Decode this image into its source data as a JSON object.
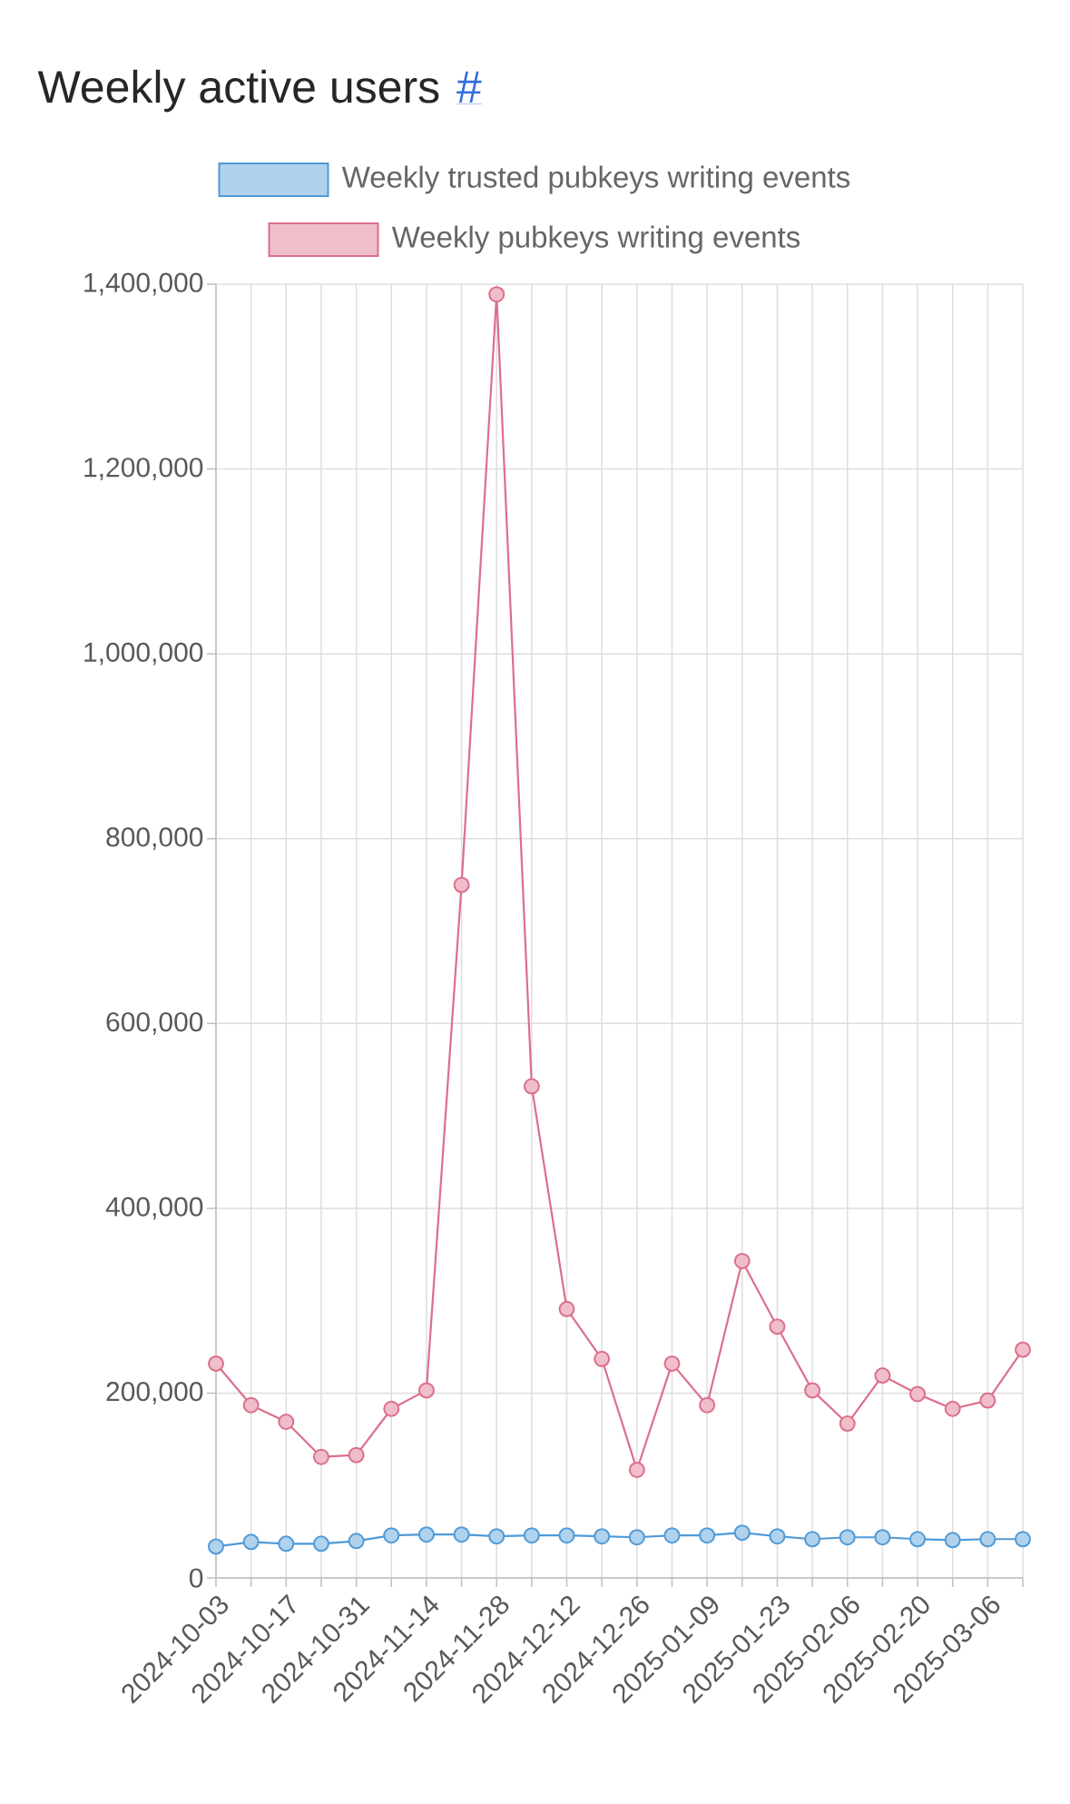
{
  "chart_data": {
    "type": "line",
    "title": "Weekly active users",
    "annotations": [
      "#"
    ],
    "categories": [
      "2024-10-03",
      null,
      "2024-10-17",
      null,
      "2024-10-31",
      null,
      "2024-11-14",
      null,
      "2024-11-28",
      null,
      "2024-12-12",
      null,
      "2024-12-26",
      null,
      "2025-01-09",
      null,
      "2025-01-23",
      null,
      "2025-02-06",
      null,
      "2025-02-20",
      null,
      "2025-03-06",
      null
    ],
    "series": [
      {
        "name": "Weekly trusted pubkeys writing events",
        "color": "#4f9ad8",
        "values": [
          34000,
          39000,
          37000,
          37000,
          40000,
          46000,
          47000,
          47000,
          45000,
          46000,
          46000,
          45000,
          44000,
          46000,
          46000,
          49000,
          45000,
          42000,
          44000,
          44000,
          42000,
          41000,
          42000,
          42000
        ]
      },
      {
        "name": "Weekly pubkeys writing events",
        "color": "#dc6f8a",
        "values": [
          232000,
          187000,
          169000,
          131000,
          133000,
          183000,
          203000,
          750000,
          1389000,
          532000,
          291000,
          237000,
          117000,
          232000,
          187000,
          343000,
          272000,
          203000,
          167000,
          219000,
          199000,
          183000,
          192000,
          247000
        ]
      }
    ],
    "ylim": [
      0,
      1400000
    ],
    "yticks": [
      {
        "value": 0,
        "label": "0"
      },
      {
        "value": 200000,
        "label": "200,000"
      },
      {
        "value": 400000,
        "label": "400,000"
      },
      {
        "value": 600000,
        "label": "600,000"
      },
      {
        "value": 800000,
        "label": "800,000"
      },
      {
        "value": 1000000,
        "label": "1,000,000"
      },
      {
        "value": 1200000,
        "label": "1,200,000"
      },
      {
        "value": 1400000,
        "label": "1,400,000"
      }
    ],
    "grid": true,
    "legend": "top",
    "marker": "circle",
    "line_style": "solid"
  }
}
